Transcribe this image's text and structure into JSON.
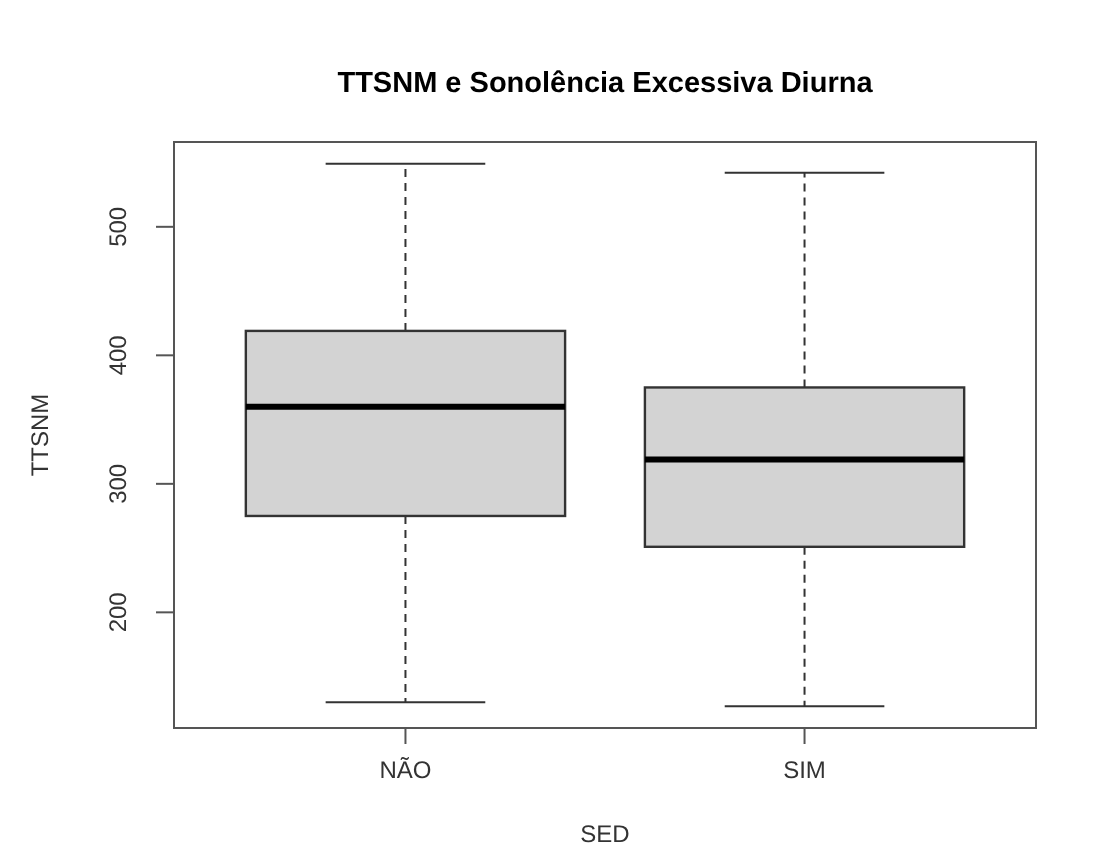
{
  "chart_data": {
    "type": "box",
    "title": "TTSNM e Sonolência Excessiva Diurna",
    "xlabel": "SED",
    "ylabel": "TTSNM",
    "categories": [
      "NÃO",
      "SIM"
    ],
    "color": "#d3d3d3",
    "boxes": [
      {
        "low": 130,
        "q1": 275,
        "median": 360,
        "q3": 419,
        "high": 549
      },
      {
        "low": 127,
        "q1": 251,
        "median": 319,
        "q3": 375,
        "high": 542
      }
    ],
    "ylim": [
      110,
      566
    ],
    "yticks": [
      200,
      300,
      400,
      500
    ],
    "grid": false
  }
}
